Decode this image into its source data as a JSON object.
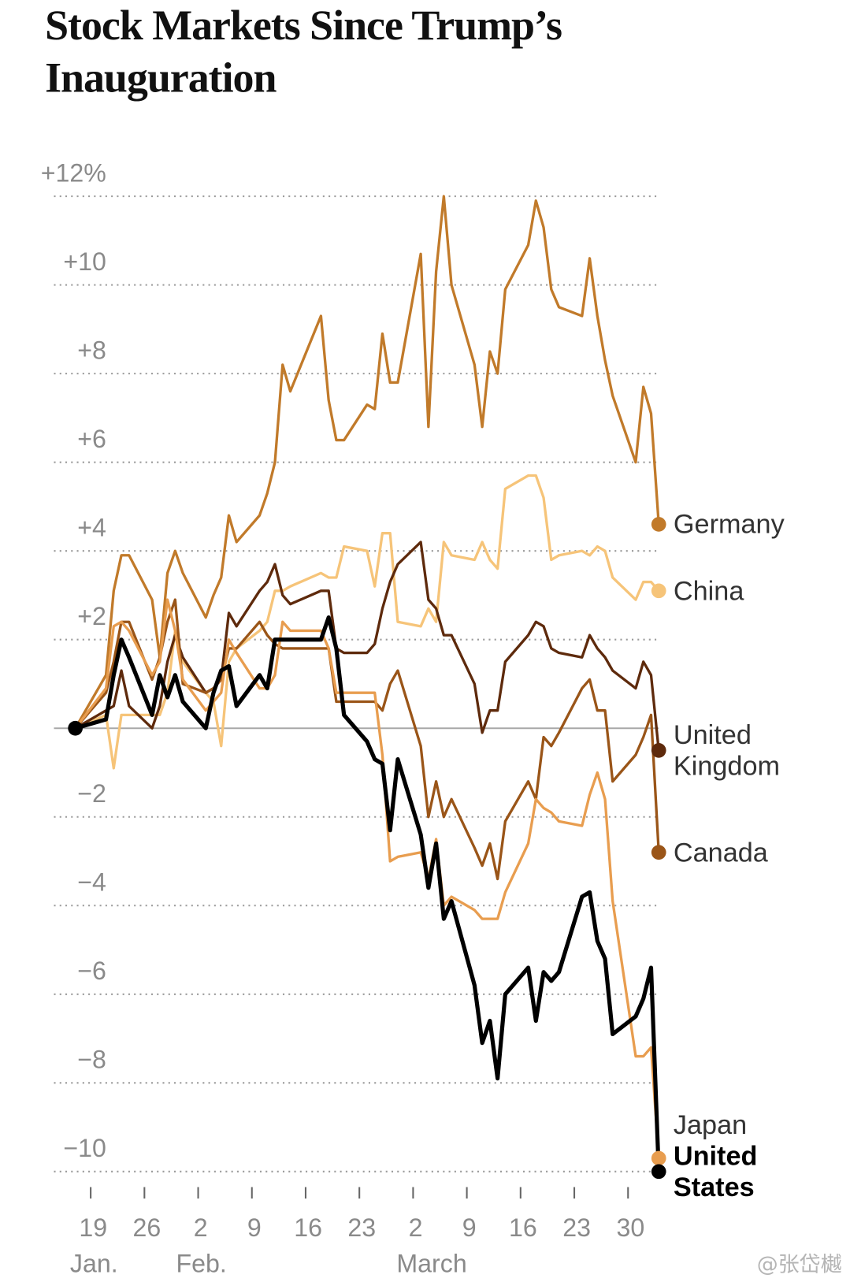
{
  "chart_data": {
    "type": "line",
    "title": "Stock Markets Since Trump’s Inauguration",
    "watermark": "@张岱樾",
    "x": [
      17,
      21,
      22,
      23,
      24,
      27,
      28,
      29,
      30,
      31,
      34,
      35,
      36,
      37,
      38,
      41,
      42,
      43,
      44,
      45,
      49,
      50,
      51,
      52,
      55,
      56,
      57,
      58,
      59,
      62,
      63,
      64,
      65,
      66,
      69,
      70,
      71,
      72,
      73,
      76,
      77,
      78,
      79,
      80,
      83,
      84,
      85,
      86,
      87,
      90,
      91,
      92,
      93
    ],
    "xlim": [
      14,
      93
    ],
    "xticks": [
      19,
      26,
      {
        "value": 33,
        "label": "2"
      },
      {
        "value": 40,
        "label": "9"
      },
      {
        "value": 47,
        "label": "16"
      },
      {
        "value": 54,
        "label": "23"
      },
      {
        "value": 61,
        "label": "2"
      },
      {
        "value": 68,
        "label": "9"
      },
      {
        "value": 75,
        "label": "16"
      },
      {
        "value": 82,
        "label": "23"
      },
      {
        "value": 89,
        "label": "30"
      }
    ],
    "month_labels": [
      {
        "value": 19,
        "label": "Jan."
      },
      {
        "value": 33,
        "label": "Feb."
      },
      {
        "value": 63,
        "label": "March"
      }
    ],
    "ylim": [
      -10,
      12
    ],
    "yticks": [
      {
        "value": 12,
        "label": "+12%"
      },
      {
        "value": 10,
        "label": "+10"
      },
      {
        "value": 8,
        "label": "+8"
      },
      {
        "value": 6,
        "label": "+6"
      },
      {
        "value": 4,
        "label": "+4"
      },
      {
        "value": 2,
        "label": "+2"
      },
      {
        "value": 0,
        "label": null
      },
      {
        "value": -2,
        "label": "−2"
      },
      {
        "value": -4,
        "label": "−4"
      },
      {
        "value": -6,
        "label": "−6"
      },
      {
        "value": -8,
        "label": "−8"
      },
      {
        "value": -10,
        "label": "−10"
      }
    ],
    "grid": true,
    "series": [
      {
        "name": "Germany",
        "color": "#c17a2a",
        "values": [
          0,
          1.2,
          3.1,
          3.9,
          3.9,
          2.9,
          1.6,
          3.5,
          4.0,
          3.5,
          2.5,
          3.0,
          3.4,
          4.8,
          4.2,
          4.8,
          5.3,
          6.0,
          8.2,
          7.6,
          9.3,
          7.4,
          6.5,
          6.5,
          7.3,
          7.2,
          8.9,
          7.8,
          7.8,
          10.7,
          6.8,
          10.3,
          12.0,
          10.0,
          8.2,
          6.8,
          8.5,
          8.0,
          9.9,
          10.9,
          11.9,
          11.3,
          9.9,
          9.5,
          9.3,
          10.6,
          9.3,
          8.3,
          7.5,
          6.0,
          7.7,
          7.1,
          4.6
        ]
      },
      {
        "name": "China",
        "color": "#f6c479",
        "values": [
          0,
          0.3,
          -0.9,
          0.3,
          0.3,
          0.3,
          0.3,
          0.8,
          2.2,
          1.5,
          0.8,
          0.6,
          -0.4,
          1.5,
          1.8,
          2.2,
          2.4,
          3.1,
          3.1,
          3.2,
          3.5,
          3.4,
          3.4,
          4.1,
          4.0,
          3.2,
          4.4,
          4.4,
          2.4,
          2.3,
          2.7,
          2.4,
          4.2,
          3.9,
          3.8,
          4.2,
          3.8,
          3.6,
          5.4,
          5.7,
          5.7,
          5.2,
          3.8,
          3.9,
          4.0,
          3.9,
          4.1,
          4.0,
          3.4,
          2.9,
          3.3,
          3.3,
          3.1
        ]
      },
      {
        "name": "United Kingdom",
        "color": "#5e2a0c",
        "values": [
          0,
          0.4,
          0.5,
          1.3,
          0.5,
          0.0,
          0.5,
          1.5,
          2.1,
          1.6,
          0.8,
          0.9,
          1.1,
          2.6,
          2.3,
          3.1,
          3.3,
          3.7,
          3.0,
          2.8,
          3.1,
          3.1,
          1.8,
          1.7,
          1.7,
          1.9,
          2.7,
          3.3,
          3.7,
          4.2,
          2.9,
          2.7,
          2.1,
          2.1,
          1.0,
          -0.1,
          0.4,
          0.4,
          1.5,
          2.1,
          2.4,
          2.3,
          1.8,
          1.7,
          1.6,
          2.1,
          1.8,
          1.6,
          1.3,
          0.9,
          1.5,
          1.2,
          -0.5
        ]
      },
      {
        "name": "Canada",
        "color": "#9a5518",
        "values": [
          0,
          0.8,
          1.5,
          2.4,
          2.4,
          1.1,
          1.6,
          2.4,
          2.9,
          1.0,
          0.8,
          0.9,
          1.1,
          1.8,
          1.8,
          2.4,
          2.1,
          1.9,
          1.8,
          1.8,
          1.8,
          1.8,
          0.6,
          0.6,
          0.6,
          0.6,
          0.4,
          1.0,
          1.3,
          -0.4,
          -2.0,
          -1.2,
          -2.0,
          -1.6,
          -2.7,
          -3.1,
          -2.6,
          -3.4,
          -2.1,
          -1.2,
          -1.6,
          -0.2,
          -0.4,
          -0.1,
          0.9,
          1.1,
          0.4,
          0.4,
          -1.2,
          -0.6,
          -0.2,
          0.3,
          -2.8
        ]
      },
      {
        "name": "Japan",
        "color": "#e89d4f",
        "values": [
          0,
          0.9,
          2.3,
          2.4,
          2.2,
          1.2,
          1.5,
          2.9,
          2.2,
          1.1,
          0.4,
          0.6,
          0.8,
          2.0,
          1.7,
          0.9,
          0.9,
          1.2,
          2.4,
          2.2,
          2.2,
          1.8,
          0.8,
          0.8,
          0.8,
          0.8,
          -0.6,
          -3.0,
          -2.9,
          -2.8,
          -3.4,
          -2.5,
          -4.0,
          -3.8,
          -4.1,
          -4.3,
          -4.3,
          -4.3,
          -3.7,
          -2.6,
          -1.6,
          -1.8,
          -1.9,
          -2.1,
          -2.2,
          -1.5,
          -1.0,
          -1.6,
          -3.9,
          -7.4,
          -7.4,
          -7.2,
          -9.7
        ]
      },
      {
        "name": "United States",
        "color": "#000000",
        "values": [
          0,
          0.2,
          1.2,
          2.0,
          1.6,
          0.3,
          1.2,
          0.7,
          1.2,
          0.6,
          0,
          0.8,
          1.3,
          1.4,
          0.5,
          1.2,
          0.9,
          2.0,
          2.0,
          2.0,
          2.0,
          2.5,
          1.8,
          0.3,
          -0.3,
          -0.7,
          -0.8,
          -2.3,
          -0.7,
          -2.4,
          -3.6,
          -2.6,
          -4.3,
          -3.9,
          -5.8,
          -7.1,
          -6.6,
          -7.9,
          -6.0,
          -5.4,
          -6.6,
          -5.5,
          -5.7,
          -5.5,
          -3.8,
          -3.7,
          -4.8,
          -5.2,
          -6.9,
          -6.5,
          -6.1,
          -5.4,
          -10
        ]
      }
    ]
  }
}
